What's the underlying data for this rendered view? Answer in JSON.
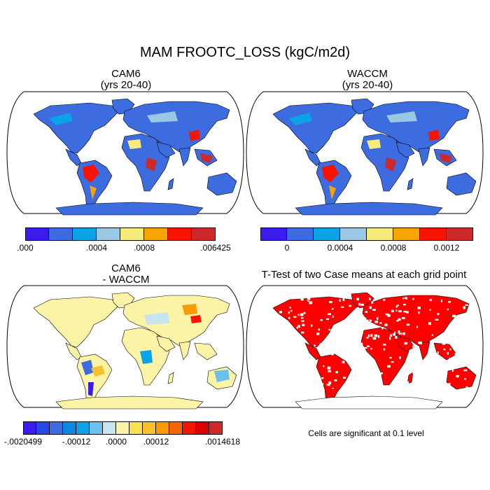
{
  "figure": {
    "main_title": "MAM FROOTC_LOSS (kgC/m2d)",
    "note": "Cells are significant at 0.1 level"
  },
  "panels": [
    {
      "id": "cam6",
      "title_line1": "CAM6",
      "title_line2": "(yrs 20-40)",
      "dominant_land_color": "#3d6be0",
      "colorbar": {
        "colors": [
          "#3a1cf0",
          "#3d6be0",
          "#0ba2e8",
          "#98c8e4",
          "#f8ec78",
          "#f8a400",
          "#f81400",
          "#cc2a2a"
        ],
        "labels": [
          ".000",
          ".0004",
          ".0008",
          ".006425"
        ],
        "label_boundaries": [
          0,
          3,
          5,
          8
        ]
      }
    },
    {
      "id": "waccm",
      "title_line1": "WACCM",
      "title_line2": "(yrs 20-40)",
      "dominant_land_color": "#3d6be0",
      "colorbar": {
        "colors": [
          "#3a1cf0",
          "#3d6be0",
          "#0ba2e8",
          "#98c8e4",
          "#f8ec78",
          "#f8a400",
          "#f81400",
          "#cc2a2a"
        ],
        "labels": [
          "0",
          "0.0004",
          "0.0008",
          "0.0012"
        ],
        "label_boundaries": [
          1,
          3,
          5,
          7
        ]
      }
    },
    {
      "id": "diff",
      "title_line1": "CAM6",
      "title_line2": "- WACCM",
      "dominant_land_color": "#fbf4a6",
      "colorbar": {
        "colors": [
          "#3a1cf0",
          "#2a48e8",
          "#3d6be0",
          "#0b88e0",
          "#0ba2e8",
          "#6cc0ec",
          "#c8e4ec",
          "#fbf4a6",
          "#f8e050",
          "#f8c030",
          "#f89a00",
          "#f86400",
          "#f81400",
          "#dd0000",
          "#cc2a2a"
        ],
        "labels": [
          "-.0020499",
          "-.00012",
          ".0000",
          ".00012",
          ".0014618"
        ],
        "label_boundaries": [
          0,
          4,
          7,
          10,
          15
        ]
      }
    },
    {
      "id": "ttest",
      "title_line1": "T-Test of two Case means at each grid point",
      "title_line2": "",
      "dominant_land_color": "#ff0000"
    }
  ]
}
